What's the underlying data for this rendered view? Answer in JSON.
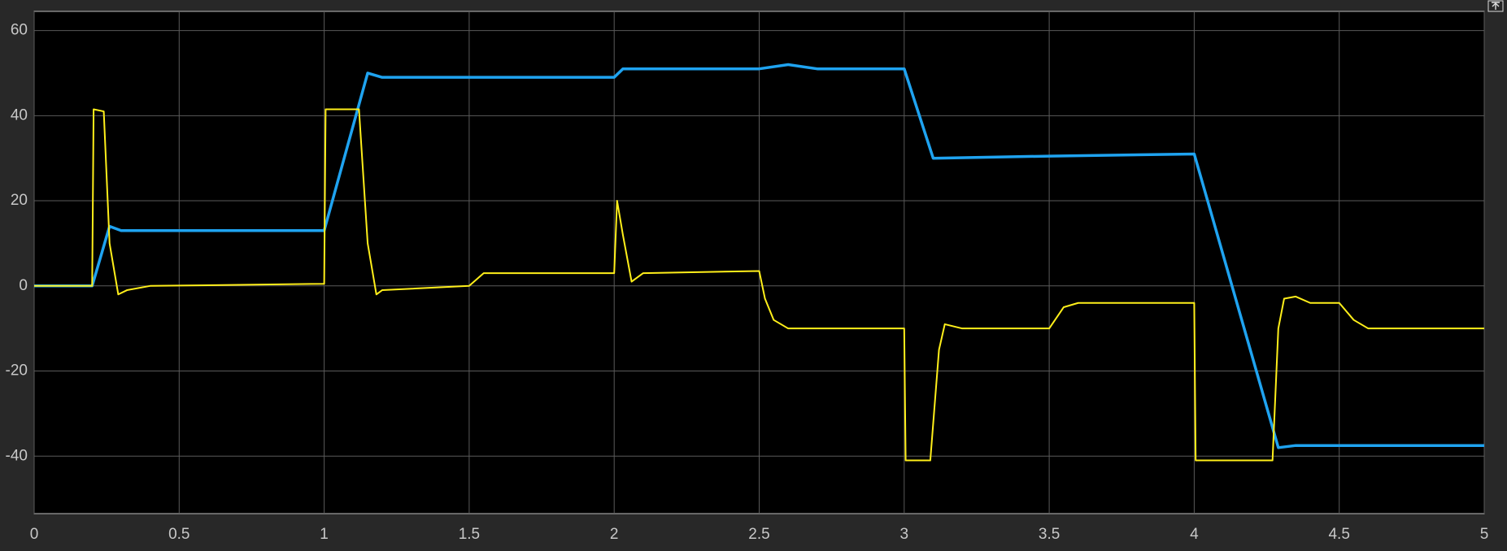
{
  "chart_data": {
    "type": "line",
    "xlim": [
      0,
      5
    ],
    "ylim": [
      -53.5,
      64.5
    ],
    "xticks": [
      0,
      0.5,
      1,
      1.5,
      2,
      2.5,
      3,
      3.5,
      4,
      4.5,
      5
    ],
    "yticks": [
      -40,
      -20,
      0,
      20,
      40,
      60
    ],
    "grid": true,
    "series": [
      {
        "color": "#1fa3f0",
        "x": [
          0,
          0.2,
          0.26,
          0.3,
          1.0,
          1.15,
          1.2,
          2.0,
          2.03,
          2.5,
          2.6,
          2.7,
          3.0,
          3.1,
          3.5,
          4.0,
          4.29,
          4.35,
          5
        ],
        "values": [
          0,
          0,
          14,
          13,
          13,
          50,
          49,
          49,
          51,
          51,
          52,
          51,
          51,
          30,
          30.5,
          31,
          -38,
          -37.5,
          -37.5
        ]
      },
      {
        "color": "#ffef1a",
        "x": [
          0,
          0.2,
          0.205,
          0.24,
          0.26,
          0.29,
          0.32,
          0.4,
          1.0,
          1.005,
          1.12,
          1.15,
          1.18,
          1.2,
          1.5,
          1.55,
          2.0,
          2.01,
          2.03,
          2.06,
          2.1,
          2.5,
          2.52,
          2.55,
          2.6,
          3.0,
          3.005,
          3.09,
          3.12,
          3.14,
          3.2,
          3.5,
          3.55,
          3.6,
          4.0,
          4.005,
          4.27,
          4.29,
          4.31,
          4.35,
          4.4,
          4.5,
          4.55,
          4.6,
          5
        ],
        "values": [
          0,
          0,
          41.5,
          41,
          10,
          -2,
          -1,
          0,
          0.5,
          41.5,
          41.5,
          10,
          -2,
          -1,
          0,
          3,
          3,
          20,
          12,
          1,
          3,
          3.5,
          -3,
          -8,
          -10,
          -10,
          -41,
          -41,
          -15,
          -9,
          -10,
          -10,
          -5,
          -4,
          -4,
          -41,
          -41,
          -10,
          -3,
          -2.5,
          -4,
          -4,
          -8,
          -10,
          -10
        ]
      }
    ]
  }
}
